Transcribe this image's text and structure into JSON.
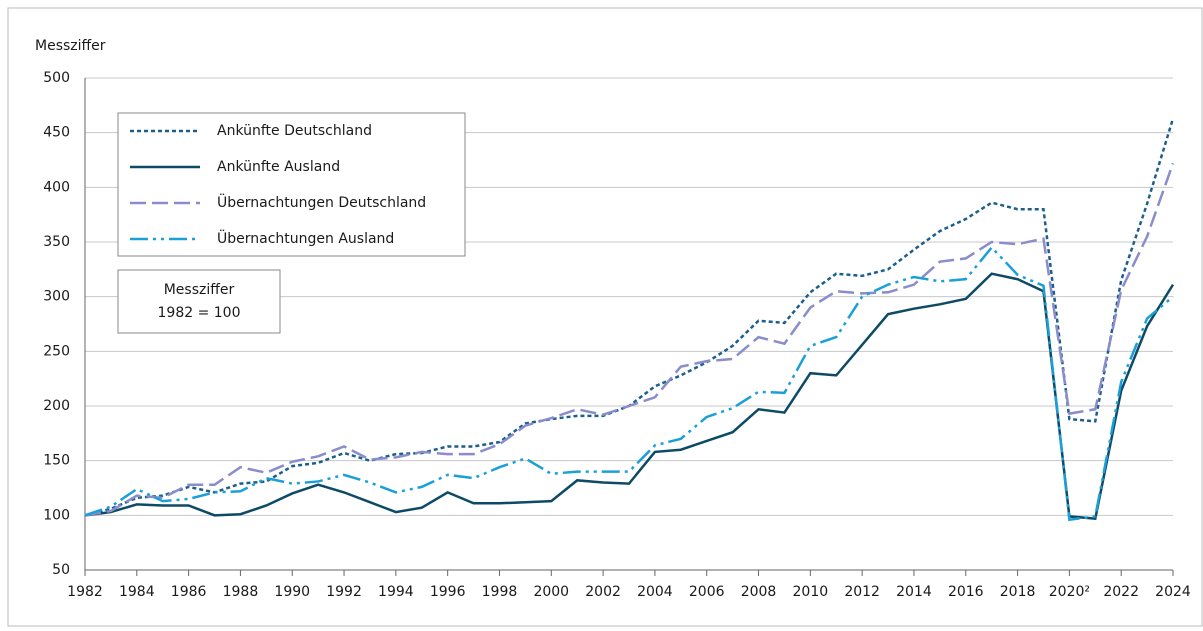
{
  "chart_data": {
    "type": "line",
    "y_label": "Messziffer",
    "annotation": [
      "Messziffer",
      "1982 = 100"
    ],
    "x": [
      1982,
      1983,
      1984,
      1985,
      1986,
      1987,
      1988,
      1989,
      1990,
      1991,
      1992,
      1993,
      1994,
      1995,
      1996,
      1997,
      1998,
      1999,
      2000,
      2001,
      2002,
      2003,
      2004,
      2005,
      2006,
      2007,
      2008,
      2009,
      2010,
      2011,
      2012,
      2013,
      2014,
      2015,
      2016,
      2017,
      2018,
      2019,
      2020,
      2021,
      2022,
      2023,
      2024
    ],
    "series": [
      {
        "name": "Ankünfte Deutschland",
        "color": "#1c5f8c",
        "dash": "dotted",
        "values": [
          100,
          106,
          116,
          118,
          126,
          121,
          129,
          131,
          145,
          148,
          157,
          150,
          156,
          157,
          163,
          163,
          167,
          184,
          188,
          191,
          191,
          200,
          218,
          228,
          240,
          255,
          278,
          276,
          304,
          321,
          319,
          325,
          343,
          360,
          371,
          386,
          380,
          380,
          188,
          186,
          315,
          385,
          463
        ]
      },
      {
        "name": "Ankünfte Ausland",
        "color": "#0d4a66",
        "dash": "solid",
        "values": [
          100,
          103,
          110,
          109,
          109,
          100,
          101,
          109,
          120,
          128,
          121,
          112,
          103,
          107,
          121,
          111,
          111,
          112,
          113,
          132,
          130,
          129,
          158,
          160,
          168,
          176,
          197,
          194,
          230,
          228,
          256,
          284,
          289,
          293,
          298,
          321,
          316,
          305,
          99,
          97,
          214,
          273,
          311
        ]
      },
      {
        "name": "Übernachtungen Deutschland",
        "color": "#8a8ccc",
        "dash": "dashed",
        "values": [
          100,
          104,
          118,
          116,
          128,
          128,
          144,
          139,
          149,
          154,
          163,
          151,
          153,
          158,
          156,
          156,
          165,
          182,
          189,
          197,
          192,
          200,
          208,
          236,
          241,
          243,
          263,
          257,
          290,
          305,
          303,
          304,
          311,
          332,
          335,
          350,
          348,
          353,
          193,
          197,
          306,
          355,
          422
        ]
      },
      {
        "name": "Übernachtungen Ausland",
        "color": "#1aa0d8",
        "dash": "dashdot",
        "values": [
          100,
          108,
          124,
          113,
          115,
          121,
          122,
          134,
          129,
          131,
          137,
          130,
          121,
          126,
          137,
          134,
          144,
          152,
          138,
          140,
          140,
          140,
          164,
          170,
          190,
          198,
          213,
          212,
          255,
          263,
          300,
          311,
          318,
          314,
          316,
          345,
          320,
          310,
          96,
          99,
          222,
          280,
          300
        ]
      }
    ],
    "xlim": [
      1982,
      2024
    ],
    "xticks": [
      1982,
      1984,
      1986,
      1988,
      1990,
      1992,
      1994,
      1996,
      1998,
      2000,
      2002,
      2004,
      2006,
      2008,
      2010,
      2012,
      2014,
      2016,
      2018,
      {
        "value": 2020,
        "label": "2020²"
      },
      2022,
      2024
    ],
    "ylim": [
      50,
      500
    ],
    "yticks": [
      50,
      100,
      150,
      200,
      250,
      300,
      350,
      400,
      450,
      500
    ],
    "grid": true
  }
}
